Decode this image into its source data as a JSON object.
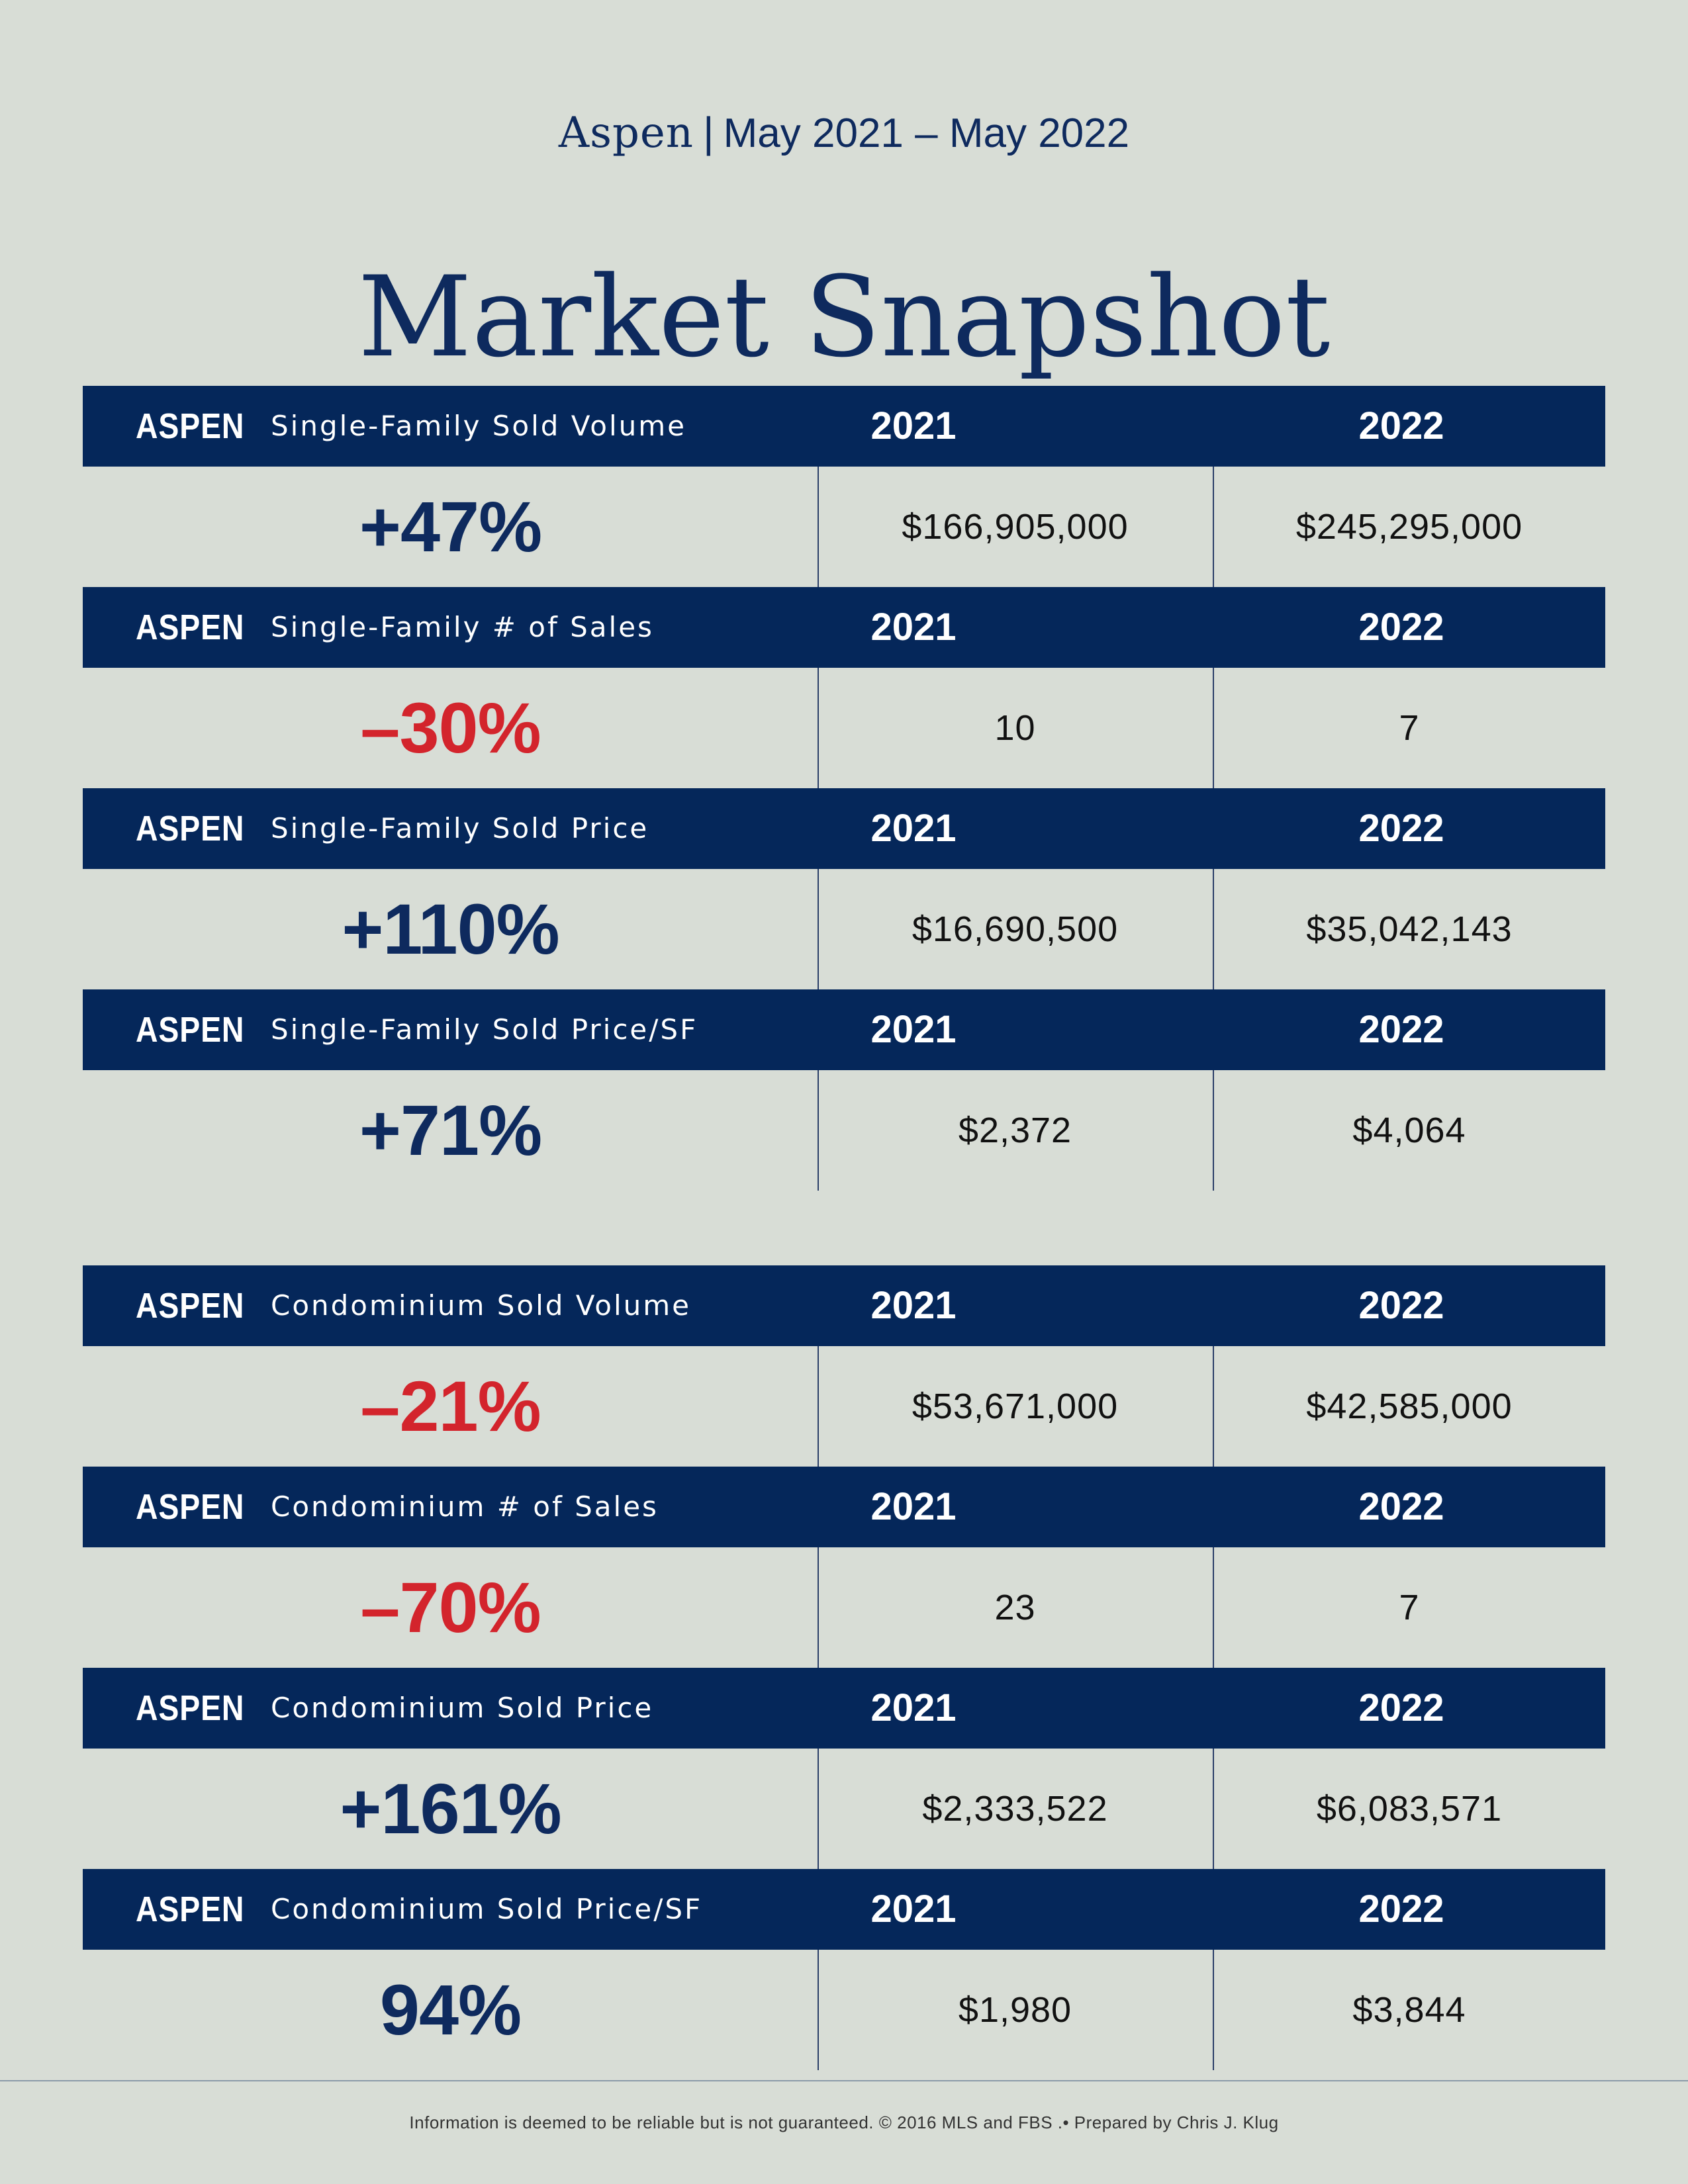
{
  "header": {
    "place": "Aspen",
    "separator": "|",
    "date_range": "May 2021 – May 2022",
    "title": "Market Snapshot"
  },
  "colors": {
    "navy": "#05275a",
    "positive": "#0e2a5e",
    "negative": "#d3242c",
    "background": "#d8ddd6"
  },
  "single_family": [
    {
      "region": "ASPEN",
      "metric": "Single-Family Sold Volume",
      "year1": "2021",
      "year2": "2022",
      "change": "+47%",
      "trend": "pos",
      "value1": "$166,905,000",
      "value2": "$245,295,000"
    },
    {
      "region": "ASPEN",
      "metric": "Single-Family # of Sales",
      "year1": "2021",
      "year2": "2022",
      "change": "–30%",
      "trend": "neg",
      "value1": "10",
      "value2": "7"
    },
    {
      "region": "ASPEN",
      "metric": "Single-Family Sold Price",
      "year1": "2021",
      "year2": "2022",
      "change": "+110%",
      "trend": "pos",
      "value1": "$16,690,500",
      "value2": "$35,042,143"
    },
    {
      "region": "ASPEN",
      "metric": "Single-Family Sold Price/SF",
      "year1": "2021",
      "year2": "2022",
      "change": "+71%",
      "trend": "pos",
      "value1": "$2,372",
      "value2": "$4,064"
    }
  ],
  "condominium": [
    {
      "region": "ASPEN",
      "metric": "Condominium Sold Volume",
      "year1": "2021",
      "year2": "2022",
      "change": "–21%",
      "trend": "neg",
      "value1": "$53,671,000",
      "value2": "$42,585,000"
    },
    {
      "region": "ASPEN",
      "metric": "Condominium # of Sales",
      "year1": "2021",
      "year2": "2022",
      "change": "–70%",
      "trend": "neg",
      "value1": "23",
      "value2": "7"
    },
    {
      "region": "ASPEN",
      "metric": "Condominium Sold Price",
      "year1": "2021",
      "year2": "2022",
      "change": "+161%",
      "trend": "pos",
      "value1": "$2,333,522",
      "value2": "$6,083,571"
    },
    {
      "region": "ASPEN",
      "metric": "Condominium Sold Price/SF",
      "year1": "2021",
      "year2": "2022",
      "change": "94%",
      "trend": "pos",
      "value1": "$1,980",
      "value2": "$3,844"
    }
  ],
  "footer": {
    "text": "Information is deemed to be reliable but is not guaranteed. © 2016 MLS and FBS .• Prepared by Chris J. Klug"
  }
}
